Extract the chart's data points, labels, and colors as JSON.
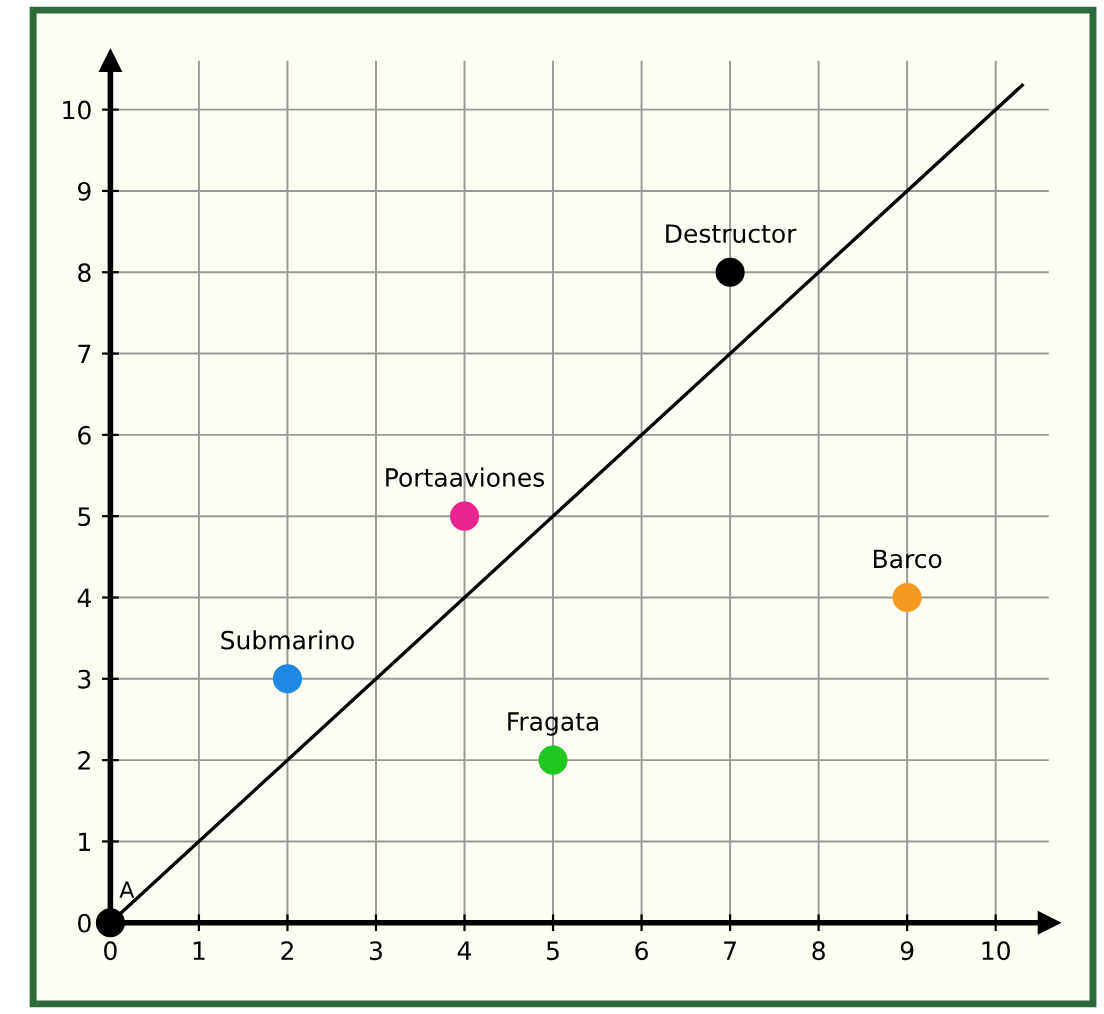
{
  "chart_data": {
    "type": "scatter",
    "series": [
      {
        "name": "A",
        "color": "#000000",
        "x": [
          0
        ],
        "values": [
          0
        ]
      },
      {
        "name": "Submarino",
        "color": "#1e88e5",
        "x": [
          2
        ],
        "values": [
          3
        ]
      },
      {
        "name": "Portaaviones",
        "color": "#e8258f",
        "x": [
          4
        ],
        "values": [
          5
        ]
      },
      {
        "name": "Destructor",
        "color": "#000000",
        "x": [
          7
        ],
        "values": [
          8
        ]
      },
      {
        "name": "Fragata",
        "color": "#22c822",
        "x": [
          5
        ],
        "values": [
          2
        ]
      },
      {
        "name": "Barco",
        "color": "#f59a1e",
        "x": [
          9
        ],
        "values": [
          4
        ]
      },
      {
        "type": "line",
        "marker": "none",
        "color": "#000000",
        "x": [
          0,
          10.3
        ],
        "values": [
          0,
          10.3
        ]
      }
    ],
    "xlim": [
      0,
      10.6
    ],
    "ylim": [
      0,
      10.6
    ],
    "xticks": [
      0,
      1,
      2,
      3,
      4,
      5,
      6,
      7,
      8,
      9,
      10
    ],
    "yticks": [
      0,
      1,
      2,
      3,
      4,
      5,
      6,
      7,
      8,
      9,
      10
    ],
    "grid": true,
    "marker": "circle"
  }
}
